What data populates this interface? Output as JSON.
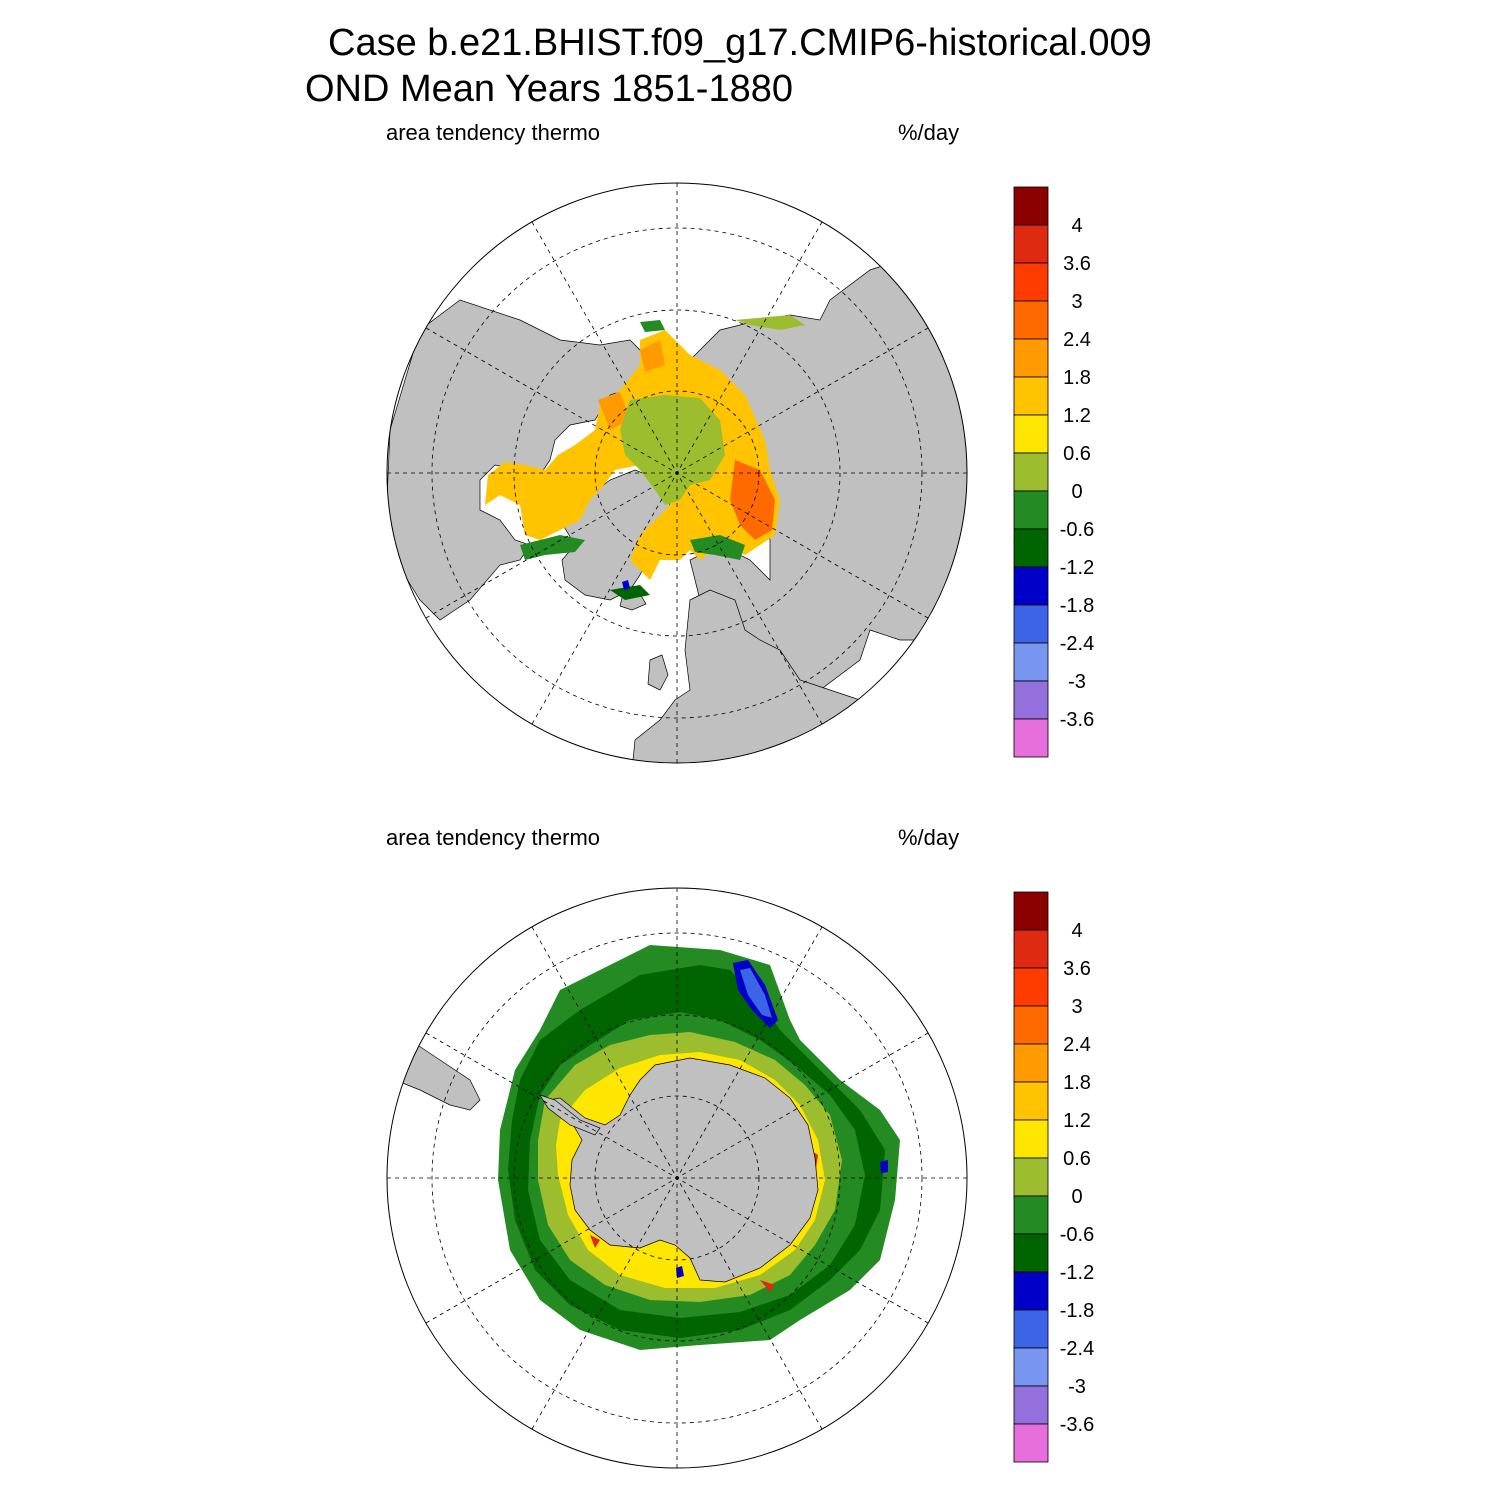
{
  "title": {
    "line1": "Case b.e21.BHIST.f09_g17.CMIP6-historical.009",
    "line2": "OND Mean   Years 1851-1880"
  },
  "panels": [
    {
      "hemisphere": "north",
      "variable_label": "area tendency thermo",
      "units_label": "%/day"
    },
    {
      "hemisphere": "south",
      "variable_label": "area tendency thermo",
      "units_label": "%/day"
    }
  ],
  "colorbar": {
    "levels": [
      "4",
      "3.6",
      "3",
      "2.4",
      "1.8",
      "1.2",
      "0.6",
      "0",
      "-0.6",
      "-1.2",
      "-1.8",
      "-2.4",
      "-3",
      "-3.6"
    ],
    "colors": [
      "#8b0000",
      "#dd2a11",
      "#ff3c00",
      "#ff6a00",
      "#ff9a00",
      "#ffc300",
      "#ffe600",
      "#9bbd2e",
      "#238b22",
      "#006400",
      "#0000c8",
      "#3c64e6",
      "#7896f0",
      "#9370db",
      "#e66fdc"
    ]
  },
  "palette": {
    "land": "#c0c0c0",
    "background": "#ffffff",
    "grid": "#000000"
  }
}
